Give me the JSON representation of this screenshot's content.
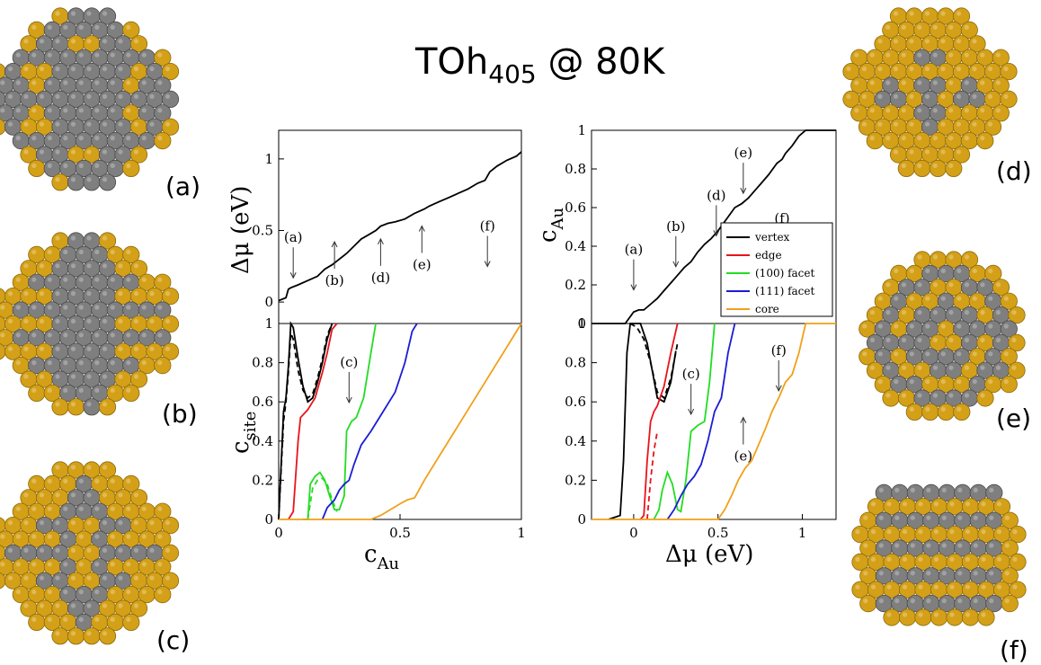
{
  "title": {
    "main": "TOh",
    "sub": "405",
    "rest": " @ 80K"
  },
  "panel_labels": [
    "(a)",
    "(b)",
    "(c)",
    "(d)",
    "(e)",
    "(f)"
  ],
  "colors": {
    "gold": "#D4A017",
    "grey": "#7f7f7f",
    "vertex": "#000000",
    "edge": "#e8141a",
    "facet100": "#22dd22",
    "facet111": "#1c1cd6",
    "core": "#f0a018"
  },
  "chart_data": [
    {
      "type": "line",
      "id": "left-top",
      "xlabel": "",
      "ylabel": "Δμ (eV)",
      "xlim": [
        0,
        1
      ],
      "ylim": [
        -0.15,
        1.2
      ],
      "yticks": [
        "0",
        "0.5",
        "1"
      ],
      "series": [
        {
          "color": "#000000",
          "x": [
            0,
            0.03,
            0.04,
            0.05,
            0.08,
            0.12,
            0.16,
            0.19,
            0.22,
            0.25,
            0.28,
            0.31,
            0.34,
            0.37,
            0.4,
            0.42,
            0.45,
            0.48,
            0.52,
            0.56,
            0.6,
            0.62,
            0.66,
            0.7,
            0.74,
            0.78,
            0.82,
            0.85,
            0.87,
            0.9,
            0.94,
            0.98,
            1.0
          ],
          "y": [
            0.01,
            0.03,
            0.09,
            0.1,
            0.12,
            0.15,
            0.18,
            0.23,
            0.26,
            0.3,
            0.34,
            0.39,
            0.44,
            0.47,
            0.5,
            0.53,
            0.55,
            0.56,
            0.58,
            0.62,
            0.65,
            0.67,
            0.7,
            0.73,
            0.76,
            0.79,
            0.83,
            0.85,
            0.91,
            0.95,
            0.99,
            1.02,
            1.05
          ]
        }
      ],
      "annotations": [
        {
          "text": "(a)",
          "x": 0.06,
          "y": 0.42
        },
        {
          "text": "(b)",
          "x": 0.23,
          "y": 0.12
        },
        {
          "text": "(d)",
          "x": 0.42,
          "y": 0.14
        },
        {
          "text": "(e)",
          "x": 0.59,
          "y": 0.23
        },
        {
          "text": "(f)",
          "x": 0.86,
          "y": 0.5
        }
      ]
    },
    {
      "type": "line",
      "id": "left-bottom",
      "xlabel": "c",
      "xlabel_sub": "Au",
      "ylabel": "c",
      "ylabel_sub": "site",
      "xlim": [
        0,
        1
      ],
      "ylim": [
        0,
        1
      ],
      "xticks": [
        "0",
        "0.5",
        "1"
      ],
      "yticks": [
        "0",
        "0.2",
        "0.4",
        "0.6",
        "0.8",
        "1"
      ],
      "series": [
        {
          "name": "vertex",
          "color": "#000000",
          "x": [
            0,
            0.02,
            0.03,
            0.04,
            0.05,
            0.06,
            0.08,
            0.1,
            0.12,
            0.14,
            0.16,
            0.18,
            0.2,
            0.22
          ],
          "y": [
            0,
            0.55,
            0.62,
            0.78,
            1.0,
            0.98,
            0.82,
            0.68,
            0.6,
            0.62,
            0.7,
            0.8,
            0.92,
            1.0
          ]
        },
        {
          "name": "vertex",
          "color": "#000000",
          "dashed": true,
          "x": [
            0,
            0.02,
            0.03,
            0.04,
            0.05,
            0.06,
            0.08,
            0.1,
            0.12,
            0.14,
            0.16,
            0.18,
            0.2,
            0.22
          ],
          "y": [
            0,
            0.5,
            0.6,
            0.75,
            0.95,
            0.92,
            0.76,
            0.66,
            0.62,
            0.64,
            0.72,
            0.82,
            0.94,
            1.0
          ]
        },
        {
          "name": "edge",
          "color": "#e8141a",
          "x": [
            0.04,
            0.06,
            0.08,
            0.09,
            0.12,
            0.15,
            0.18,
            0.2,
            0.22,
            0.24
          ],
          "y": [
            0,
            0.04,
            0.4,
            0.52,
            0.56,
            0.62,
            0.75,
            0.85,
            0.97,
            1.0
          ]
        },
        {
          "name": "(100) facet",
          "color": "#22dd22",
          "x": [
            0.1,
            0.12,
            0.13,
            0.15,
            0.17,
            0.19,
            0.21,
            0.23,
            0.25,
            0.27,
            0.28,
            0.3,
            0.32,
            0.35,
            0.38,
            0.4
          ],
          "y": [
            0,
            0,
            0.18,
            0.22,
            0.24,
            0.2,
            0.12,
            0.05,
            0.05,
            0.12,
            0.45,
            0.5,
            0.52,
            0.62,
            0.85,
            1.0
          ]
        },
        {
          "name": "(100) facet",
          "color": "#22dd22",
          "dashed": true,
          "x": [
            0.12,
            0.14,
            0.16,
            0.18,
            0.2,
            0.22,
            0.24
          ],
          "y": [
            0,
            0.16,
            0.2,
            0.21,
            0.18,
            0.1,
            0.04
          ]
        },
        {
          "name": "(111) facet",
          "color": "#1c1cd6",
          "x": [
            0.18,
            0.2,
            0.23,
            0.25,
            0.27,
            0.29,
            0.31,
            0.34,
            0.38,
            0.43,
            0.48,
            0.52,
            0.55,
            0.57
          ],
          "y": [
            0,
            0.06,
            0.1,
            0.15,
            0.18,
            0.2,
            0.28,
            0.38,
            0.45,
            0.55,
            0.65,
            0.8,
            0.96,
            1.0
          ]
        },
        {
          "name": "core",
          "color": "#f0a018",
          "x": [
            0,
            0.3,
            0.38,
            0.42,
            0.5,
            0.53,
            0.56,
            0.6,
            0.66,
            0.72,
            0.8,
            0.88,
            0.94,
            1.0
          ],
          "y": [
            0,
            0,
            0,
            0.02,
            0.08,
            0.1,
            0.11,
            0.2,
            0.32,
            0.44,
            0.6,
            0.76,
            0.88,
            1.0
          ]
        }
      ],
      "annotations": [
        {
          "text": "(c)",
          "x": 0.29,
          "y": 0.78
        }
      ]
    },
    {
      "type": "line",
      "id": "right-top",
      "xlabel": "",
      "ylabel": "c",
      "ylabel_sub": "Au",
      "xlim": [
        -0.25,
        1.2
      ],
      "ylim": [
        0,
        1
      ],
      "yticks": [
        "0",
        "0.2",
        "0.4",
        "0.6",
        "0.8",
        "1"
      ],
      "series": [
        {
          "color": "#000000",
          "x": [
            -0.25,
            -0.05,
            0.0,
            0.03,
            0.06,
            0.1,
            0.14,
            0.18,
            0.22,
            0.26,
            0.3,
            0.34,
            0.38,
            0.42,
            0.46,
            0.5,
            0.55,
            0.6,
            0.64,
            0.68,
            0.72,
            0.76,
            0.8,
            0.85,
            0.88,
            0.9,
            0.94,
            0.98,
            1.02,
            1.1,
            1.2
          ],
          "y": [
            0,
            0,
            0.06,
            0.07,
            0.07,
            0.1,
            0.13,
            0.17,
            0.21,
            0.25,
            0.29,
            0.32,
            0.37,
            0.41,
            0.44,
            0.48,
            0.54,
            0.6,
            0.62,
            0.65,
            0.69,
            0.73,
            0.77,
            0.83,
            0.85,
            0.88,
            0.92,
            0.97,
            1.0,
            1.0,
            1.0
          ]
        }
      ],
      "annotations": [
        {
          "text": "(a)",
          "x": 0.0,
          "y": 0.36
        },
        {
          "text": "(b)",
          "x": 0.25,
          "y": 0.48
        },
        {
          "text": "(d)",
          "x": 0.49,
          "y": 0.64
        },
        {
          "text": "(e)",
          "x": 0.65,
          "y": 0.86
        },
        {
          "text": "(f)",
          "x": 0.88,
          "y": 0.52
        }
      ],
      "legend": {
        "placement": "lower-right",
        "entries": [
          {
            "label": "vertex",
            "color": "#000000"
          },
          {
            "label": "edge",
            "color": "#e8141a"
          },
          {
            "label": "(100) facet",
            "color": "#22dd22"
          },
          {
            "label": "(111) facet",
            "color": "#1c1cd6"
          },
          {
            "label": "core",
            "color": "#f0a018"
          }
        ]
      }
    },
    {
      "type": "line",
      "id": "right-bottom",
      "xlabel": "Δμ (eV)",
      "ylabel": "",
      "xlim": [
        -0.25,
        1.2
      ],
      "ylim": [
        0,
        1
      ],
      "xticks": [
        "0",
        "0.5",
        "1"
      ],
      "yticks": [
        "0",
        "0.2",
        "0.4",
        "0.6",
        "0.8",
        "1"
      ],
      "series": [
        {
          "name": "vertex",
          "color": "#000000",
          "x": [
            -0.15,
            -0.08,
            -0.06,
            -0.04,
            -0.02,
            0.0,
            0.04,
            0.08,
            0.14,
            0.18,
            0.22,
            0.25
          ],
          "y": [
            0,
            0.02,
            0.3,
            0.85,
            1.0,
            1.0,
            1.0,
            0.9,
            0.62,
            0.6,
            0.7,
            0.86
          ]
        },
        {
          "name": "vertex",
          "color": "#000000",
          "dashed": true,
          "x": [
            -0.02,
            0.02,
            0.06,
            0.1,
            0.14,
            0.18,
            0.22,
            0.26
          ],
          "y": [
            1.0,
            0.98,
            0.92,
            0.8,
            0.65,
            0.62,
            0.72,
            0.9
          ]
        },
        {
          "name": "edge",
          "color": "#e8141a",
          "x": [
            0.04,
            0.06,
            0.08,
            0.1,
            0.12,
            0.14,
            0.18,
            0.22,
            0.26
          ],
          "y": [
            0,
            0.02,
            0.3,
            0.5,
            0.55,
            0.58,
            0.68,
            0.85,
            1.0
          ]
        },
        {
          "name": "edge",
          "color": "#e8141a",
          "dashed": true,
          "x": [
            0.08,
            0.1,
            0.12,
            0.14
          ],
          "y": [
            0,
            0.2,
            0.35,
            0.45
          ]
        },
        {
          "name": "(100) facet",
          "color": "#22dd22",
          "x": [
            0.12,
            0.15,
            0.17,
            0.2,
            0.23,
            0.26,
            0.28,
            0.31,
            0.34,
            0.38,
            0.42,
            0.45,
            0.48
          ],
          "y": [
            0,
            0.05,
            0.15,
            0.24,
            0.18,
            0.05,
            0.04,
            0.2,
            0.45,
            0.48,
            0.5,
            0.7,
            1.0
          ]
        },
        {
          "name": "(111) facet",
          "color": "#1c1cd6",
          "x": [
            0.2,
            0.24,
            0.28,
            0.32,
            0.36,
            0.4,
            0.44,
            0.48,
            0.52,
            0.56,
            0.6
          ],
          "y": [
            0,
            0.05,
            0.12,
            0.18,
            0.22,
            0.28,
            0.4,
            0.55,
            0.62,
            0.85,
            1.0
          ]
        },
        {
          "name": "core",
          "color": "#f0a018",
          "x": [
            -0.25,
            0.5,
            0.54,
            0.58,
            0.62,
            0.66,
            0.7,
            0.74,
            0.78,
            0.82,
            0.86,
            0.9,
            0.94,
            0.98,
            1.02,
            1.2
          ],
          "y": [
            0,
            0,
            0.05,
            0.12,
            0.2,
            0.26,
            0.3,
            0.38,
            0.46,
            0.55,
            0.62,
            0.7,
            0.74,
            0.85,
            1.0,
            1.0
          ]
        }
      ],
      "annotations": [
        {
          "text": "(c)",
          "x": 0.34,
          "y": 0.72
        },
        {
          "text": "(e)",
          "x": 0.65,
          "y": 0.3
        },
        {
          "text": "(f)",
          "x": 0.86,
          "y": 0.84
        }
      ]
    }
  ]
}
